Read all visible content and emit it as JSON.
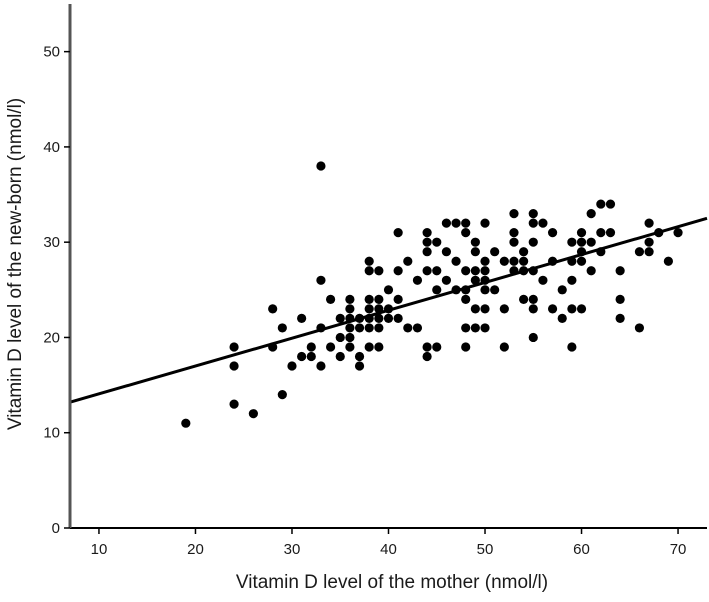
{
  "chart_data": {
    "type": "scatter",
    "title": "",
    "xlabel": "Vitamin D level of the mother (nmol/l)",
    "ylabel": "Vitamin D level of the new-born (nmol/l)",
    "xlim": [
      7,
      73
    ],
    "ylim": [
      0,
      55
    ],
    "xticks": [
      10,
      20,
      30,
      40,
      50,
      60,
      70
    ],
    "yticks": [
      0,
      10,
      20,
      30,
      40,
      50
    ],
    "grid": false,
    "marker_color": "#000000",
    "trendline": {
      "x": [
        7,
        73
      ],
      "y": [
        13.2,
        32.5
      ]
    },
    "points": [
      [
        19,
        11
      ],
      [
        24,
        19
      ],
      [
        24,
        17
      ],
      [
        24,
        13
      ],
      [
        26,
        12
      ],
      [
        28,
        23
      ],
      [
        28,
        19
      ],
      [
        29,
        21
      ],
      [
        29,
        14
      ],
      [
        30,
        17
      ],
      [
        31,
        22
      ],
      [
        31,
        18
      ],
      [
        32,
        19
      ],
      [
        32,
        18
      ],
      [
        33,
        38
      ],
      [
        33,
        26
      ],
      [
        33,
        21
      ],
      [
        33,
        17
      ],
      [
        34,
        24
      ],
      [
        34,
        19
      ],
      [
        35,
        22
      ],
      [
        35,
        20
      ],
      [
        35,
        18
      ],
      [
        36,
        24
      ],
      [
        36,
        23
      ],
      [
        36,
        22
      ],
      [
        36,
        21
      ],
      [
        36,
        20
      ],
      [
        36,
        19
      ],
      [
        37,
        22
      ],
      [
        37,
        21
      ],
      [
        37,
        18
      ],
      [
        37,
        17
      ],
      [
        38,
        28
      ],
      [
        38,
        27
      ],
      [
        38,
        24
      ],
      [
        38,
        23
      ],
      [
        38,
        22
      ],
      [
        38,
        21
      ],
      [
        38,
        19
      ],
      [
        39,
        27
      ],
      [
        39,
        24
      ],
      [
        39,
        23
      ],
      [
        39,
        22
      ],
      [
        39,
        21
      ],
      [
        39,
        19
      ],
      [
        40,
        25
      ],
      [
        40,
        23
      ],
      [
        40,
        22
      ],
      [
        41,
        31
      ],
      [
        41,
        27
      ],
      [
        41,
        24
      ],
      [
        41,
        22
      ],
      [
        42,
        28
      ],
      [
        42,
        21
      ],
      [
        43,
        26
      ],
      [
        43,
        21
      ],
      [
        44,
        31
      ],
      [
        44,
        30
      ],
      [
        44,
        29
      ],
      [
        44,
        27
      ],
      [
        44,
        19
      ],
      [
        44,
        18
      ],
      [
        45,
        30
      ],
      [
        45,
        27
      ],
      [
        45,
        25
      ],
      [
        45,
        19
      ],
      [
        46,
        32
      ],
      [
        46,
        29
      ],
      [
        46,
        26
      ],
      [
        47,
        32
      ],
      [
        47,
        28
      ],
      [
        47,
        25
      ],
      [
        48,
        32
      ],
      [
        48,
        31
      ],
      [
        48,
        27
      ],
      [
        48,
        25
      ],
      [
        48,
        24
      ],
      [
        48,
        21
      ],
      [
        48,
        19
      ],
      [
        49,
        30
      ],
      [
        49,
        29
      ],
      [
        49,
        27
      ],
      [
        49,
        26
      ],
      [
        49,
        23
      ],
      [
        49,
        21
      ],
      [
        50,
        32
      ],
      [
        50,
        28
      ],
      [
        50,
        27
      ],
      [
        50,
        26
      ],
      [
        50,
        25
      ],
      [
        50,
        23
      ],
      [
        50,
        21
      ],
      [
        51,
        29
      ],
      [
        51,
        25
      ],
      [
        52,
        28
      ],
      [
        52,
        23
      ],
      [
        52,
        19
      ],
      [
        53,
        33
      ],
      [
        53,
        31
      ],
      [
        53,
        30
      ],
      [
        53,
        28
      ],
      [
        53,
        27
      ],
      [
        54,
        29
      ],
      [
        54,
        28
      ],
      [
        54,
        27
      ],
      [
        54,
        24
      ],
      [
        55,
        33
      ],
      [
        55,
        32
      ],
      [
        55,
        30
      ],
      [
        55,
        27
      ],
      [
        55,
        24
      ],
      [
        55,
        23
      ],
      [
        55,
        20
      ],
      [
        56,
        32
      ],
      [
        56,
        26
      ],
      [
        57,
        31
      ],
      [
        57,
        28
      ],
      [
        57,
        23
      ],
      [
        58,
        25
      ],
      [
        58,
        22
      ],
      [
        59,
        30
      ],
      [
        59,
        28
      ],
      [
        59,
        26
      ],
      [
        59,
        23
      ],
      [
        59,
        19
      ],
      [
        60,
        31
      ],
      [
        60,
        30
      ],
      [
        60,
        29
      ],
      [
        60,
        28
      ],
      [
        60,
        23
      ],
      [
        61,
        33
      ],
      [
        61,
        30
      ],
      [
        61,
        27
      ],
      [
        62,
        34
      ],
      [
        62,
        31
      ],
      [
        62,
        29
      ],
      [
        63,
        34
      ],
      [
        63,
        31
      ],
      [
        64,
        27
      ],
      [
        64,
        24
      ],
      [
        64,
        22
      ],
      [
        66,
        29
      ],
      [
        66,
        21
      ],
      [
        67,
        32
      ],
      [
        67,
        30
      ],
      [
        67,
        29
      ],
      [
        68,
        31
      ],
      [
        69,
        28
      ],
      [
        70,
        31
      ]
    ]
  }
}
